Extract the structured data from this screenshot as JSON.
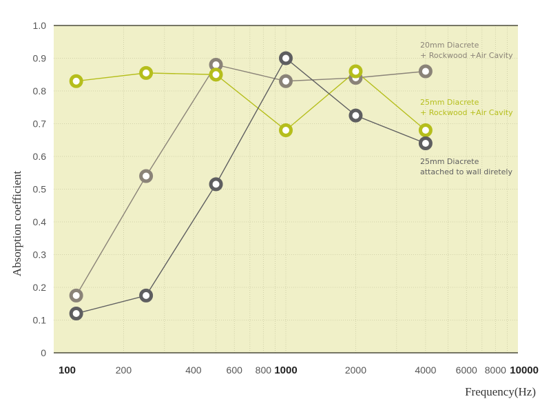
{
  "chart_data": {
    "type": "line",
    "xscale": "log",
    "xlim": [
      100,
      10000
    ],
    "ylim": [
      0,
      1.0
    ],
    "grid": true,
    "xlabel": "Frequency(Hz)",
    "ylabel": "Absorption  coefficient",
    "yticks": [
      "0",
      "0.1",
      "0.2",
      "0.3",
      "0.4",
      "0.5",
      "0.6",
      "0.7",
      "0.8",
      "0.9",
      "1.0"
    ],
    "xticks": [
      {
        "value": 100,
        "label": "100",
        "bold": true
      },
      {
        "value": 200,
        "label": "200",
        "bold": false
      },
      {
        "value": 400,
        "label": "400",
        "bold": false
      },
      {
        "value": 600,
        "label": "600",
        "bold": false
      },
      {
        "value": 800,
        "label": "800",
        "bold": false
      },
      {
        "value": 1000,
        "label": "1000",
        "bold": true
      },
      {
        "value": 2000,
        "label": "2000",
        "bold": false
      },
      {
        "value": 4000,
        "label": "4000",
        "bold": false
      },
      {
        "value": 6000,
        "label": "6000",
        "bold": false
      },
      {
        "value": 8000,
        "label": "8000",
        "bold": false
      },
      {
        "value": 10000,
        "label": "10000",
        "bold": true
      }
    ],
    "x": [
      125,
      250,
      500,
      1000,
      2000,
      4000
    ],
    "series": [
      {
        "name": "20mm Diacrete + Rockwood +Air Cavity",
        "legend_lines": [
          "20mm Diacrete",
          "+ Rockwood +Air Cavity"
        ],
        "color": "#8a8378",
        "values": [
          0.175,
          0.54,
          0.88,
          0.83,
          0.84,
          0.86
        ]
      },
      {
        "name": "25mm Diacrete + Rockwood +Air Cavity",
        "legend_lines": [
          "25mm Diacrete",
          "+ Rockwood +Air Cavity"
        ],
        "color": "#b5be1c",
        "values": [
          0.83,
          0.855,
          0.85,
          0.68,
          0.86,
          0.68
        ]
      },
      {
        "name": "25mm Diacrete attached to wall diretely",
        "legend_lines": [
          "25mm Diacrete",
          "attached to wall diretely"
        ],
        "color": "#5e5e60",
        "values": [
          0.12,
          0.175,
          0.515,
          0.9,
          0.725,
          0.64
        ]
      }
    ],
    "colors": {
      "plot_background": "#f0f0c8",
      "axis": "#4a4a3a"
    }
  }
}
